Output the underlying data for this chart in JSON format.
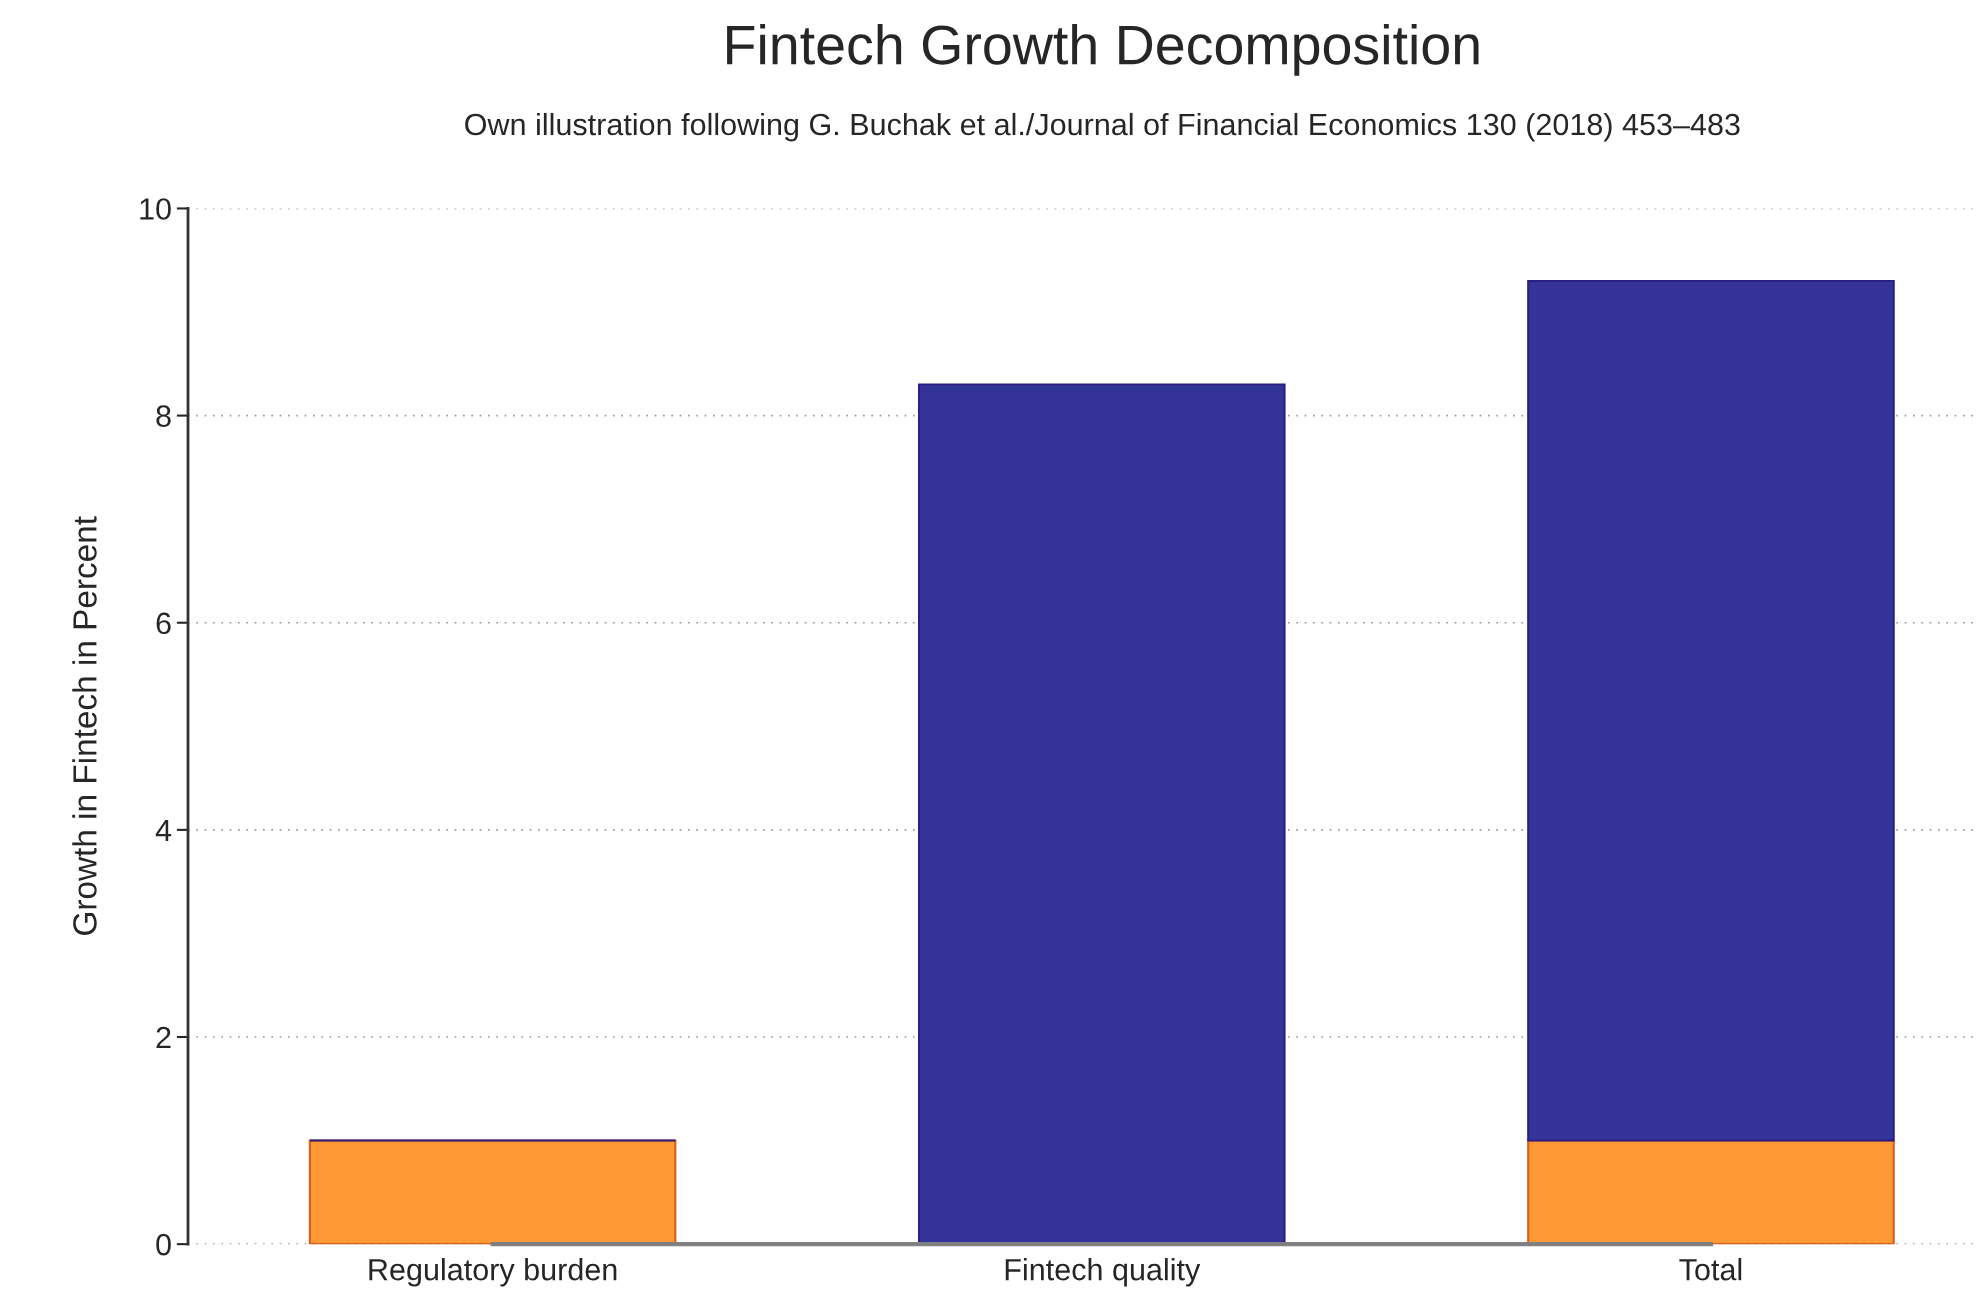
{
  "chart_data": {
    "type": "bar",
    "title": "Fintech Growth Decomposition",
    "subtitle": "Own illustration following G. Buchak et al./Journal of Financial Economics 130 (2018) 453–483",
    "ylabel": "Growth in Fintech in Percent",
    "categories": [
      "Regulatory burden",
      "Fintech quality",
      "Total"
    ],
    "stacked": true,
    "series": [
      {
        "color": "#ff9933",
        "values": [
          1.0,
          null,
          1.0
        ]
      },
      {
        "color": "#333399",
        "values": [
          null,
          8.3,
          8.3
        ]
      }
    ],
    "ylim": [
      0,
      10
    ],
    "yticks": [
      0,
      2,
      4,
      6,
      8,
      10
    ],
    "grid": "y",
    "legend": false
  }
}
